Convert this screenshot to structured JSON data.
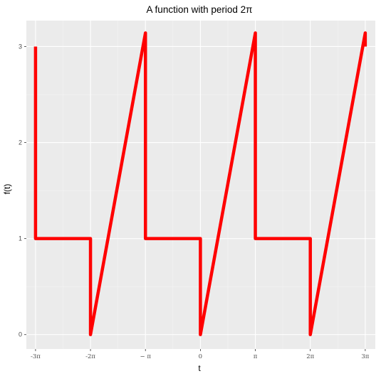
{
  "chart_data": {
    "type": "line",
    "title": "A function with period 2π",
    "xlabel": "t",
    "ylabel": "f(t)",
    "xlim": [
      -9.95,
      10.0
    ],
    "ylim": [
      -0.15,
      3.27
    ],
    "grid": true,
    "x_ticks": [
      {
        "value": -9.4248,
        "label": "-3π"
      },
      {
        "value": -6.2832,
        "label": "-2π"
      },
      {
        "value": -3.1416,
        "label": "− π"
      },
      {
        "value": 0,
        "label": "0"
      },
      {
        "value": 3.1416,
        "label": "π"
      },
      {
        "value": 6.2832,
        "label": "2π"
      },
      {
        "value": 9.4248,
        "label": "3π"
      }
    ],
    "y_ticks": [
      {
        "value": 0,
        "label": "0"
      },
      {
        "value": 1,
        "label": "1"
      },
      {
        "value": 2,
        "label": "2"
      },
      {
        "value": 3,
        "label": "3"
      }
    ],
    "series": [
      {
        "color": "#ff0000",
        "points": [
          [
            -9.4248,
            3.0
          ],
          [
            -9.4248,
            1.0
          ],
          [
            -6.2832,
            1.0
          ],
          [
            -6.2832,
            0.0
          ],
          [
            -3.1416,
            3.1416
          ],
          [
            -3.1416,
            1.0
          ],
          [
            0,
            1.0
          ],
          [
            0,
            0.0
          ],
          [
            3.1416,
            3.1416
          ],
          [
            3.1416,
            1.0
          ],
          [
            6.2832,
            1.0
          ],
          [
            6.2832,
            0.0
          ],
          [
            9.4248,
            3.1416
          ],
          [
            9.4248,
            3.0
          ]
        ]
      }
    ],
    "colors": {
      "panel_background": "#ebebeb",
      "grid_major": "#ffffff",
      "grid_minor": "#f4f4f4",
      "line": "#ff0000"
    }
  }
}
